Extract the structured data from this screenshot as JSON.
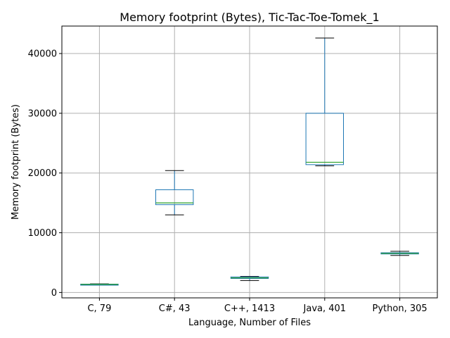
{
  "chart_data": {
    "type": "box",
    "title": "Memory footprint (Bytes), Tic-Tac-Toe-Tomek_1",
    "xlabel": "Language, Number of Files",
    "ylabel": "Memory footprint (Bytes)",
    "ylim": [
      -900,
      44600
    ],
    "yticks": [
      0,
      10000,
      20000,
      30000,
      40000
    ],
    "ytick_labels": [
      "0",
      "10000",
      "20000",
      "30000",
      "40000"
    ],
    "grid": true,
    "categories": [
      "C, 79",
      "C#, 43",
      "C++, 1413",
      "Java, 401",
      "Python, 305"
    ],
    "boxes": [
      {
        "whisker_low": 1300,
        "q1": 1320,
        "median": 1350,
        "q3": 1400,
        "whisker_high": 1450
      },
      {
        "whisker_low": 13000,
        "q1": 14700,
        "median": 15000,
        "q3": 17200,
        "whisker_high": 20400
      },
      {
        "whisker_low": 2000,
        "q1": 2350,
        "median": 2450,
        "q3": 2600,
        "whisker_high": 2700
      },
      {
        "whisker_low": 21200,
        "q1": 21400,
        "median": 21800,
        "q3": 30000,
        "whisker_high": 42600
      },
      {
        "whisker_low": 6200,
        "q1": 6450,
        "median": 6550,
        "q3": 6650,
        "whisker_high": 6900
      }
    ],
    "colors": {
      "box": "#1f77b4",
      "median": "#2ca02c",
      "cap": "#000000",
      "grid": "#b0b0b0"
    }
  }
}
